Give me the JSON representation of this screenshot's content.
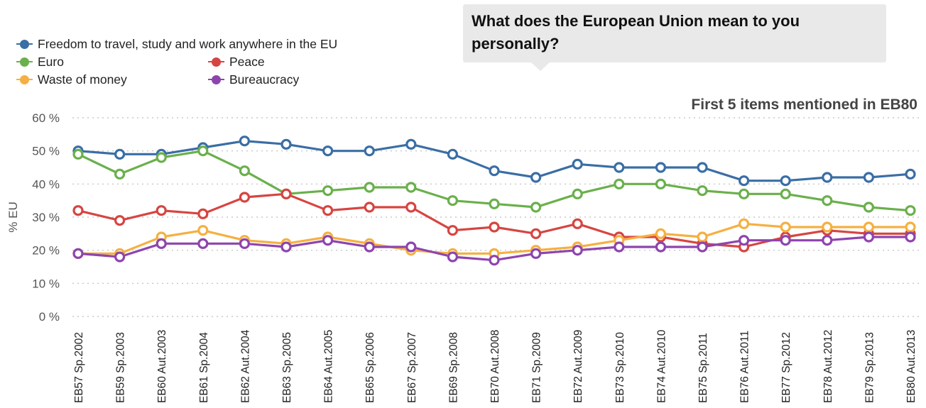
{
  "callout": {
    "line1": "What does the European Union mean to you",
    "line2": "personally?"
  },
  "subtitle": "First 5 items mentioned in EB80",
  "chart_data": {
    "type": "line",
    "title": "What does the European Union mean to you personally?",
    "subtitle": "First 5 items mentioned in EB80",
    "xlabel": "",
    "ylabel": "% EU",
    "ylim": [
      0,
      60
    ],
    "yticks": [
      "0 %",
      "10 %",
      "20 %",
      "30 %",
      "40 %",
      "50 %",
      "60 %"
    ],
    "ytick_values": [
      0,
      10,
      20,
      30,
      40,
      50,
      60
    ],
    "grid": true,
    "legend_position": "top-left",
    "categories": [
      "EB57 Sp.2002",
      "EB59 Sp.2003",
      "EB60 Aut.2003",
      "EB61 Sp.2004",
      "EB62 Aut.2004",
      "EB63 Sp.2005",
      "EB64 Aut.2005",
      "EB65 Sp.2006",
      "EB67 Sp.2007",
      "EB69 Sp.2008",
      "EB70 Aut.2008",
      "EB71 Sp.2009",
      "EB72 Aut.2009",
      "EB73 Sp.2010",
      "EB74 Aut.2010",
      "EB75 Sp.2011",
      "EB76 Aut.2011",
      "EB77 Sp.2012",
      "EB78 Aut.2012",
      "EB79 Sp.2013",
      "EB80 Aut.2013"
    ],
    "series": [
      {
        "name": "Freedom to travel, study and work anywhere in the EU",
        "color": "#3a6ea5",
        "values": [
          50,
          49,
          49,
          51,
          53,
          52,
          50,
          50,
          52,
          49,
          44,
          42,
          46,
          45,
          45,
          45,
          41,
          41,
          42,
          42,
          43
        ]
      },
      {
        "name": "Euro",
        "color": "#6ab04c",
        "values": [
          49,
          43,
          48,
          50,
          44,
          37,
          38,
          39,
          39,
          35,
          34,
          33,
          37,
          40,
          40,
          38,
          37,
          37,
          35,
          33,
          32
        ]
      },
      {
        "name": "Peace",
        "color": "#d64541",
        "values": [
          32,
          29,
          32,
          31,
          36,
          37,
          32,
          33,
          33,
          26,
          27,
          25,
          28,
          24,
          24,
          22,
          21,
          24,
          26,
          25,
          25
        ]
      },
      {
        "name": "Waste of money",
        "color": "#f5b041",
        "values": [
          19,
          19,
          24,
          26,
          23,
          22,
          24,
          22,
          20,
          19,
          19,
          20,
          21,
          23,
          25,
          24,
          28,
          27,
          27,
          27,
          27
        ]
      },
      {
        "name": "Bureaucracy",
        "color": "#8e44ad",
        "values": [
          19,
          18,
          22,
          22,
          22,
          21,
          23,
          21,
          21,
          18,
          17,
          19,
          20,
          21,
          21,
          21,
          23,
          23,
          23,
          24,
          24
        ]
      }
    ]
  }
}
